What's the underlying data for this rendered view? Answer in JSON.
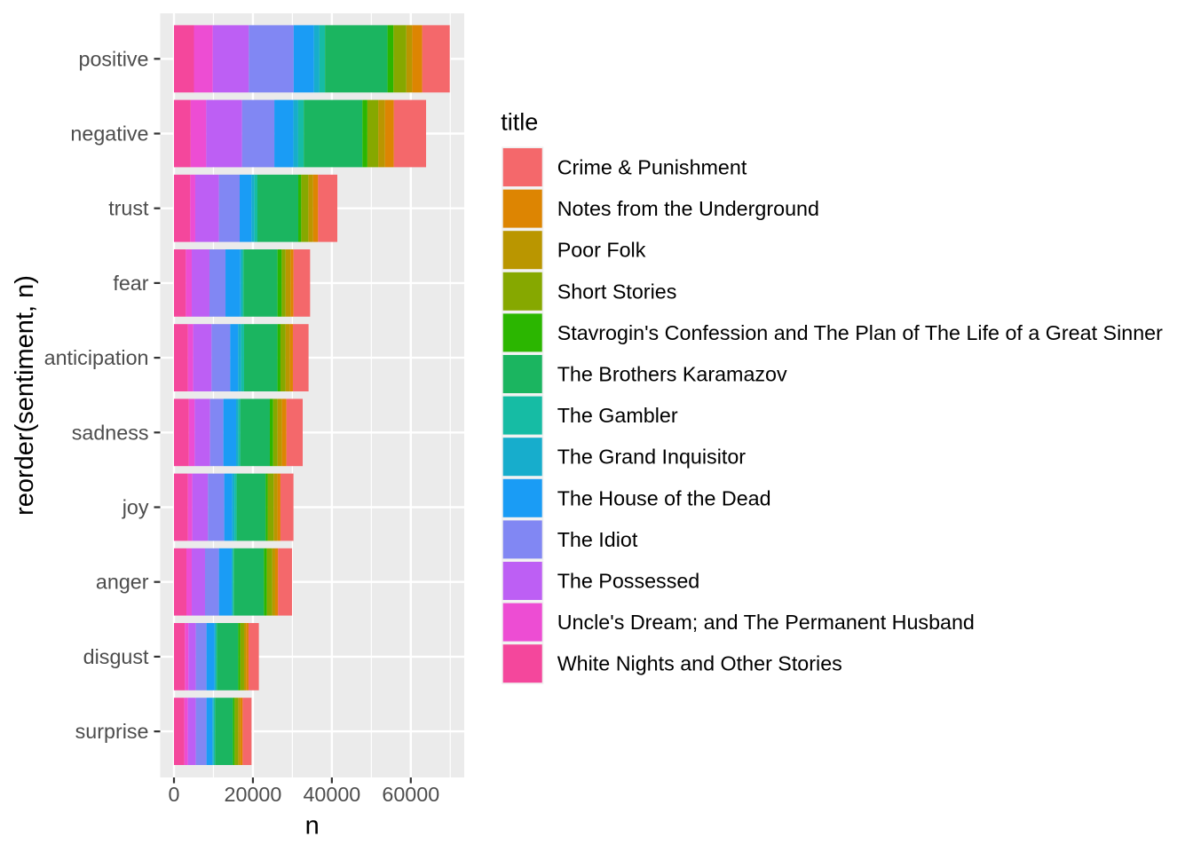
{
  "figure": {
    "background": "#FFFFFF"
  },
  "panel": {
    "background": "#EBEBEB",
    "grid_color": "#FFFFFF",
    "tick_color": "#333333",
    "axis_text_color": "#4D4D4D",
    "title_color": "#000000"
  },
  "legend": {
    "title": "title",
    "key_background": "#F0F0F0",
    "entries": [
      {
        "label": "Crime & Punishment",
        "color": "#F4686B"
      },
      {
        "label": "Notes from the Underground",
        "color": "#DD8502"
      },
      {
        "label": "Poor Folk",
        "color": "#BA9600"
      },
      {
        "label": "Short Stories",
        "color": "#86A800"
      },
      {
        "label": "Stavrogin's Confession and The Plan of The Life of a Great Sinner",
        "color": "#2BB600"
      },
      {
        "label": "The Brothers Karamazov",
        "color": "#1BB560"
      },
      {
        "label": "The Gambler",
        "color": "#16BCA4"
      },
      {
        "label": "The Grand Inquisitor",
        "color": "#17ADCC"
      },
      {
        "label": "The House of the Dead",
        "color": "#1A9CF5"
      },
      {
        "label": "The Idiot",
        "color": "#8187F3"
      },
      {
        "label": "The Possessed",
        "color": "#BD5FF4"
      },
      {
        "label": "Uncle's Dream; and The Permanent Husband",
        "color": "#ED4DD3"
      },
      {
        "label": "White Nights and Other Stories",
        "color": "#F4479C"
      }
    ]
  },
  "chart_data": {
    "type": "bar",
    "stacked": true,
    "orientation": "horizontal",
    "title": "",
    "xlabel": "n",
    "ylabel": "reorder(sentiment, n)",
    "xlim": [
      0,
      73500
    ],
    "x_major_ticks": [
      0,
      20000,
      40000,
      60000
    ],
    "x_tick_labels": [
      "0",
      "20000",
      "40000",
      "60000"
    ],
    "x_minor_ticks": [
      10000,
      30000,
      50000,
      70000
    ],
    "categories": [
      "positive",
      "negative",
      "trust",
      "fear",
      "anticipation",
      "sadness",
      "joy",
      "anger",
      "disgust",
      "surprise"
    ],
    "stack_note": "segments stack from x=0 in reverse series order (last series nearest axis)",
    "series": [
      {
        "name": "Crime & Punishment",
        "values": [
          6990,
          8180,
          4870,
          4200,
          3970,
          4120,
          3300,
          3520,
          2620,
          2250
        ]
      },
      {
        "name": "Notes from the Underground",
        "values": [
          2520,
          2230,
          1270,
          750,
          750,
          1125,
          750,
          750,
          600,
          600
        ]
      },
      {
        "name": "Poor Folk",
        "values": [
          1490,
          1710,
          1200,
          1275,
          1125,
          1125,
          975,
          750,
          525,
          525
        ]
      },
      {
        "name": "Short Stories",
        "values": [
          3270,
          2750,
          1800,
          975,
          1275,
          1125,
          1500,
          1350,
          975,
          900
        ]
      },
      {
        "name": "Stavrogin's Confession and The Plan of The Life of a Great Sinner",
        "values": [
          1490,
          1270,
          750,
          1050,
          750,
          825,
          525,
          750,
          525,
          450
        ]
      },
      {
        "name": "The Brothers Karamazov",
        "values": [
          15850,
          14860,
          10350,
          8620,
          8470,
          7500,
          7350,
          7650,
          5400,
          4500
        ]
      },
      {
        "name": "The Gambler",
        "values": [
          1400,
          1400,
          750,
          410,
          750,
          525,
          560,
          260,
          300,
          340
        ]
      },
      {
        "name": "The Grand Inquisitor",
        "values": [
          1400,
          1200,
          750,
          410,
          750,
          525,
          560,
          260,
          300,
          340
        ]
      },
      {
        "name": "The House of the Dead",
        "values": [
          5130,
          4840,
          3000,
          3750,
          2020,
          3220,
          2020,
          3220,
          2020,
          1500
        ]
      },
      {
        "name": "The Idiot",
        "values": [
          11370,
          8180,
          5250,
          4050,
          4720,
          3370,
          4120,
          3520,
          2700,
          2700
        ]
      },
      {
        "name": "The Possessed",
        "values": [
          9140,
          9070,
          6000,
          4500,
          4650,
          3900,
          3970,
          3370,
          1870,
          2020
        ]
      },
      {
        "name": "Uncle's Dream; and The Permanent Husband",
        "values": [
          4760,
          3940,
          1270,
          1500,
          1350,
          1500,
          1125,
          1350,
          900,
          900
        ]
      },
      {
        "name": "White Nights and Other Stories",
        "values": [
          5060,
          4240,
          4120,
          3000,
          3520,
          3750,
          3520,
          3150,
          2770,
          2620
        ]
      }
    ]
  }
}
